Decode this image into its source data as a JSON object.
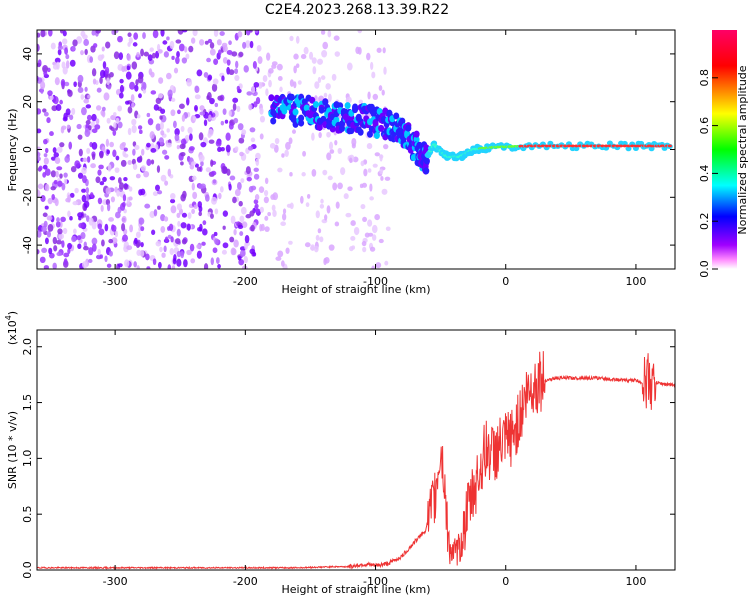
{
  "title": "C2E4.2023.268.13.39.R22",
  "chart_data": [
    {
      "type": "heatmap",
      "xlabel": "Height of straight line (km)",
      "ylabel": "Frequency (Hz)",
      "xlim": [
        -360,
        130
      ],
      "ylim": [
        -50,
        50
      ],
      "x_ticks": [
        -300,
        -200,
        -100,
        0,
        100
      ],
      "y_ticks": [
        -40,
        -20,
        0,
        20,
        40
      ],
      "colorbar": {
        "label": "Normalized spectral amplitude",
        "range": [
          0,
          1
        ],
        "ticks": [
          "0.0",
          "0.2",
          "0.4",
          "0.6",
          "0.8"
        ],
        "colors": [
          "#ffffff",
          "#ff00ff",
          "#4b00ff",
          "#0000ff",
          "#00ffff",
          "#00ff00",
          "#ffff00",
          "#ff0000",
          "#ff0066"
        ]
      },
      "ridge": [
        {
          "x": -180,
          "y": 17
        },
        {
          "x": -160,
          "y": 16
        },
        {
          "x": -140,
          "y": 15
        },
        {
          "x": -120,
          "y": 13
        },
        {
          "x": -100,
          "y": 12
        },
        {
          "x": -85,
          "y": 9
        },
        {
          "x": -72,
          "y": 3
        },
        {
          "x": -62,
          "y": -4
        },
        {
          "x": -55,
          "y": 2
        },
        {
          "x": -45,
          "y": -3
        },
        {
          "x": -35,
          "y": -3
        },
        {
          "x": -25,
          "y": 0
        },
        {
          "x": -10,
          "y": 1
        },
        {
          "x": 20,
          "y": 1.5
        },
        {
          "x": 60,
          "y": 1.5
        },
        {
          "x": 100,
          "y": 1.5
        },
        {
          "x": 128,
          "y": 1.5
        }
      ],
      "noise_extent_x": [
        -360,
        -90
      ],
      "grid": false
    },
    {
      "type": "line",
      "xlabel": "Height of straight line (km)",
      "ylabel": "SNR (10 * v/v)",
      "y_multiplier": "(x10",
      "y_multiplier_exp": "4",
      "y_multiplier_close": ")",
      "xlim": [
        -360,
        130
      ],
      "ylim": [
        0,
        2.15
      ],
      "x_ticks": [
        -300,
        -200,
        -100,
        0,
        100
      ],
      "y_ticks": [
        "0.0",
        "0.5",
        "1.0",
        "1.5",
        "2.0"
      ],
      "series": [
        {
          "color": "#ee3333",
          "x": [
            -360,
            -300,
            -250,
            -200,
            -160,
            -130,
            -120,
            -110,
            -100,
            -90,
            -80,
            -70,
            -62,
            -55,
            -50,
            -47,
            -45,
            -43,
            -40,
            -35,
            -30,
            -25,
            -20,
            -15,
            -10,
            -5,
            0,
            5,
            10,
            15,
            20,
            25,
            30,
            40,
            50,
            60,
            70,
            80,
            90,
            100,
            105,
            108,
            110,
            112,
            115,
            120,
            125,
            130
          ],
          "y": [
            0.02,
            0.02,
            0.02,
            0.02,
            0.02,
            0.03,
            0.03,
            0.05,
            0.04,
            0.06,
            0.12,
            0.25,
            0.35,
            0.6,
            1.1,
            0.8,
            0.4,
            0.2,
            0.15,
            0.2,
            0.5,
            0.7,
            0.9,
            1.1,
            1.05,
            1.1,
            1.15,
            1.2,
            1.35,
            1.55,
            1.65,
            1.68,
            1.7,
            1.72,
            1.72,
            1.72,
            1.72,
            1.71,
            1.7,
            1.7,
            1.68,
            1.68,
            1.75,
            1.65,
            1.68,
            1.67,
            1.66,
            1.65
          ]
        }
      ],
      "grid": false
    }
  ]
}
